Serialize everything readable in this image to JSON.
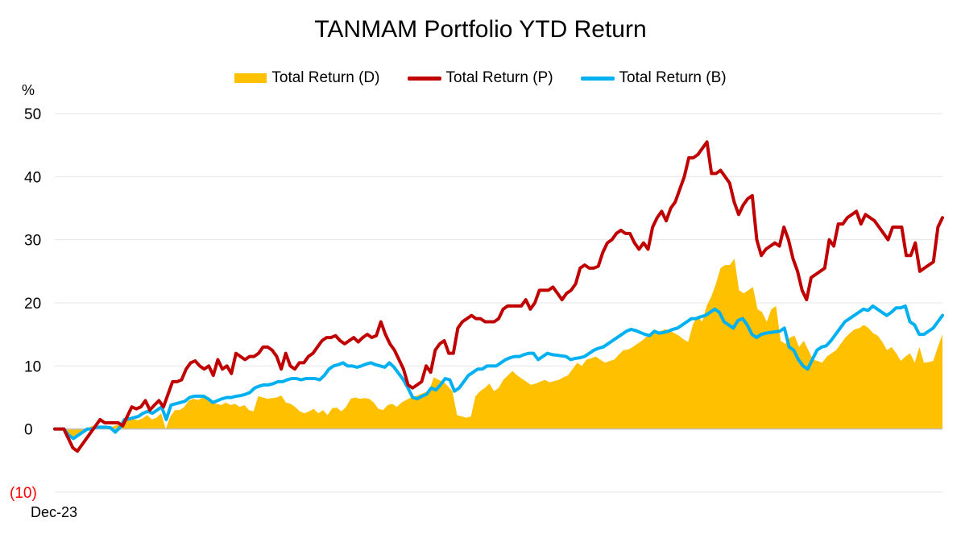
{
  "chart_data": {
    "type": "line",
    "title": "TANMAM Portfolio YTD Return",
    "ylabel": "%",
    "x_tick_label": "Dec-23",
    "ylim": [
      -10,
      50
    ],
    "yticks": [
      {
        "value": 50,
        "label": "50"
      },
      {
        "value": 40,
        "label": "40"
      },
      {
        "value": 30,
        "label": "30"
      },
      {
        "value": 20,
        "label": "20"
      },
      {
        "value": 10,
        "label": "10"
      },
      {
        "value": 0,
        "label": "0"
      },
      {
        "value": -10,
        "label": "(10)"
      }
    ],
    "grid": true,
    "legend_position": "top",
    "colors": {
      "D": "#FFC000",
      "P": "#C00000",
      "B": "#00B0F0",
      "negative_tick": "#FF0000",
      "grid": "#E6E6E6",
      "axis": "#BFBFBF"
    },
    "series": [
      {
        "name": "Total Return (D)",
        "style": "area",
        "values": [
          0,
          0,
          0,
          -1,
          -1.2,
          -0.8,
          -0.3,
          0,
          0.5,
          0.5,
          0.5,
          0.5,
          0.2,
          0.5,
          0.8,
          1.2,
          1.5,
          1.6,
          1.4,
          1.7,
          2.2,
          1.5,
          1.8,
          2.5,
          0,
          2,
          3,
          3,
          3.5,
          4.5,
          4.8,
          4.6,
          5,
          4.8,
          4.2,
          4,
          3.8,
          4.2,
          3.8,
          4,
          3.5,
          3.8,
          3,
          2.8,
          5.2,
          5,
          4.8,
          4.9,
          5,
          5.3,
          4.2,
          4,
          3.5,
          2.8,
          2.5,
          2.8,
          3.2,
          2.5,
          3,
          2.2,
          3.3,
          3.4,
          2.8,
          3.5,
          4.8,
          5,
          4.8,
          4.9,
          4.8,
          4.2,
          3.2,
          3,
          3.8,
          4,
          3.5,
          4.2,
          4.6,
          5,
          5.2,
          5.5,
          5.8,
          6.2,
          8.2,
          7.8,
          7.5,
          6.8,
          6,
          2.2,
          2,
          1.8,
          2,
          5.2,
          6,
          6.5,
          7.2,
          6,
          6.5,
          7.8,
          8.5,
          9.2,
          8.5,
          8,
          7.5,
          7,
          7.2,
          7.5,
          7.8,
          7.4,
          7.6,
          7.8,
          8.2,
          8.5,
          9.5,
          10.5,
          10,
          11,
          11.2,
          11.5,
          11,
          10.5,
          10.8,
          11,
          11.8,
          12.5,
          12.6,
          13,
          13.5,
          14,
          14.6,
          15,
          15.3,
          15.5,
          15.8,
          15.6,
          15.2,
          14.8,
          14.2,
          13.8,
          16.5,
          18,
          17,
          19.5,
          21,
          23,
          25.5,
          26,
          26,
          27,
          22,
          21.5,
          22,
          22.5,
          19,
          18.5,
          17,
          19,
          19.5,
          14,
          13.5,
          14.5,
          14.8,
          13,
          14,
          12.5,
          11,
          10.8,
          10.5,
          11.5,
          12,
          12.5,
          13.5,
          14.5,
          15.2,
          15.8,
          16,
          16.5,
          16,
          15.2,
          14.8,
          13.8,
          12.5,
          13,
          12,
          10.8,
          11.5,
          12,
          10.5,
          13,
          10.5,
          10.6,
          10.8,
          13,
          15
        ]
      },
      {
        "name": "Total Return (P)",
        "style": "line",
        "values": [
          0,
          0,
          0,
          -1.5,
          -3,
          -3.5,
          -2.5,
          -1.5,
          -0.5,
          0.5,
          1.5,
          1,
          1,
          1,
          1,
          0.5,
          2,
          3.5,
          3.2,
          3.5,
          4.5,
          3,
          3.8,
          4.5,
          3.5,
          5.5,
          7.5,
          7.5,
          7.8,
          9.5,
          10.5,
          10.8,
          10,
          9.5,
          10,
          8.5,
          11,
          9.5,
          10,
          8.8,
          12,
          11.5,
          11,
          11.5,
          11.5,
          12,
          13,
          13,
          12.5,
          11.5,
          9.5,
          12,
          10,
          9.5,
          10.5,
          10.5,
          11.5,
          12,
          13,
          14,
          14.5,
          14.5,
          14.8,
          14,
          13.5,
          14,
          14.5,
          13.8,
          14.5,
          15,
          14.5,
          14.8,
          17,
          15,
          13.5,
          12.5,
          11,
          9.5,
          7,
          6.5,
          7,
          7.5,
          10,
          9,
          12.5,
          13.5,
          14,
          12,
          12,
          16,
          17,
          17.5,
          18,
          17.5,
          17.5,
          17,
          17,
          17,
          17.5,
          19,
          19.5,
          19.5,
          19.5,
          19.5,
          20.5,
          19,
          20,
          22,
          22,
          22,
          22.5,
          21.5,
          20.5,
          21.5,
          22,
          23,
          25.5,
          26,
          25.5,
          25.5,
          25.8,
          28,
          29.5,
          30,
          31,
          31.5,
          31,
          31,
          29.5,
          28.5,
          29.5,
          28.5,
          32,
          33.5,
          34.5,
          33,
          35,
          36,
          38,
          40,
          43,
          43,
          43.5,
          44.5,
          45.5,
          40.5,
          40.5,
          41,
          40,
          39,
          36,
          34,
          35.5,
          36.5,
          37,
          30,
          27.5,
          28.5,
          29,
          29.5,
          29,
          32,
          30,
          27,
          25,
          22,
          20.5,
          24,
          24.5,
          25,
          25.5,
          30,
          29,
          32.5,
          32.5,
          33.5,
          34,
          34.5,
          32.5,
          34,
          33.5,
          33,
          32,
          31,
          30,
          32,
          32,
          32,
          27.5,
          27.5,
          29.5,
          25,
          25.5,
          26,
          26.5,
          32,
          33.5
        ]
      },
      {
        "name": "Total Return (B)",
        "style": "line",
        "values": [
          0,
          0,
          0,
          -1,
          -1.5,
          -1,
          -0.5,
          0,
          0,
          0.3,
          0.3,
          0.3,
          0.2,
          -0.5,
          0.2,
          1.5,
          1.6,
          1.8,
          2,
          2.5,
          2.8,
          2.5,
          3,
          3.5,
          1.5,
          3.8,
          4,
          4.2,
          4.4,
          5,
          5.2,
          5.2,
          5.2,
          4.8,
          4.2,
          4.5,
          4.8,
          5,
          5,
          5.2,
          5.3,
          5.5,
          5.8,
          6.5,
          6.8,
          7,
          7,
          7.2,
          7.5,
          7.5,
          7.8,
          8,
          8,
          7.8,
          8,
          8,
          8,
          7.8,
          8.5,
          9.5,
          10,
          10.2,
          10.5,
          10,
          10,
          9.8,
          10,
          10.3,
          10.5,
          10.2,
          10,
          9.8,
          10.5,
          9.8,
          8.8,
          7.8,
          6.5,
          5,
          4.8,
          5.2,
          5.5,
          6.5,
          6.2,
          7,
          8,
          7.8,
          6,
          6.5,
          7.5,
          8.5,
          9,
          9.5,
          9.5,
          10,
          10,
          10,
          10.5,
          11,
          11.3,
          11.5,
          11.5,
          11.8,
          12,
          12,
          11,
          11.5,
          12,
          11.8,
          11.7,
          11.6,
          11.5,
          11,
          11.2,
          11.3,
          11.5,
          12,
          12.5,
          12.8,
          13,
          13.5,
          14,
          14.5,
          15,
          15.5,
          15.8,
          15.6,
          15.3,
          15,
          14.8,
          15.5,
          15.2,
          15.3,
          15.5,
          15.8,
          16,
          16.5,
          17,
          17.5,
          17.5,
          17.8,
          18,
          18.5,
          19,
          18.5,
          17,
          16.5,
          16,
          17.2,
          17.5,
          16.5,
          15,
          14.5,
          15,
          15.2,
          15.3,
          15.4,
          15.5,
          16,
          13,
          12.5,
          11,
          10,
          9.5,
          11,
          12.5,
          13,
          13.2,
          14,
          15,
          16,
          17,
          17.5,
          18,
          18.5,
          19,
          18.8,
          19.5,
          19,
          18.5,
          18,
          18.5,
          19.2,
          19.2,
          19.5,
          17,
          16.5,
          15,
          15,
          15.5,
          16,
          17,
          18
        ]
      }
    ]
  }
}
